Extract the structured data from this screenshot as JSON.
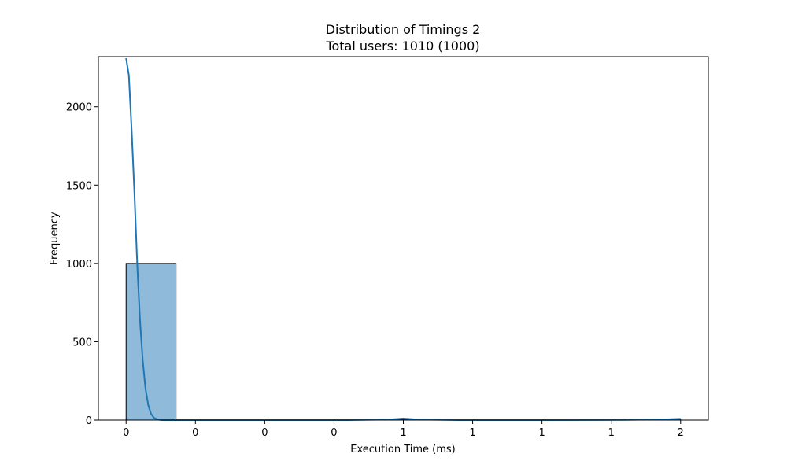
{
  "chart_data": {
    "type": "histogram",
    "title": "Distribution of Timings 2",
    "subtitle": "Total users: 1010 (1000)",
    "xlabel": "Execution Time (ms)",
    "ylabel": "Frequency",
    "xlim": [
      -0.1,
      2.1
    ],
    "ylim": [
      0,
      2320
    ],
    "x_ticks": [
      {
        "value": 0,
        "label": "0"
      },
      {
        "value": 0.25,
        "label": "0"
      },
      {
        "value": 0.5,
        "label": "0"
      },
      {
        "value": 0.75,
        "label": "0"
      },
      {
        "value": 1.0,
        "label": "1"
      },
      {
        "value": 1.25,
        "label": "1"
      },
      {
        "value": 1.5,
        "label": "1"
      },
      {
        "value": 1.75,
        "label": "1"
      },
      {
        "value": 2.0,
        "label": "2"
      }
    ],
    "y_ticks": [
      0,
      500,
      1000,
      1500,
      2000
    ],
    "bins": [
      {
        "x0": 0.0,
        "x1": 0.18,
        "count": 1000
      },
      {
        "x0": 0.18,
        "x1": 0.36,
        "count": 0
      },
      {
        "x0": 0.36,
        "x1": 0.54,
        "count": 0
      },
      {
        "x0": 0.54,
        "x1": 0.72,
        "count": 0
      },
      {
        "x0": 0.72,
        "x1": 0.9,
        "count": 0
      },
      {
        "x0": 0.9,
        "x1": 1.08,
        "count": 5
      },
      {
        "x0": 1.08,
        "x1": 1.26,
        "count": 0
      },
      {
        "x0": 1.26,
        "x1": 1.44,
        "count": 0
      },
      {
        "x0": 1.44,
        "x1": 1.62,
        "count": 0
      },
      {
        "x0": 1.62,
        "x1": 1.8,
        "count": 0
      },
      {
        "x0": 1.8,
        "x1": 2.0,
        "count": 5
      }
    ],
    "kde": {
      "x": [
        0.0,
        0.01,
        0.02,
        0.03,
        0.04,
        0.05,
        0.06,
        0.07,
        0.08,
        0.09,
        0.1,
        0.11,
        0.12,
        0.13,
        0.15,
        0.18,
        0.22,
        0.3,
        0.5,
        0.8,
        0.95,
        1.0,
        1.05,
        1.2,
        1.5,
        1.8,
        1.95,
        2.0
      ],
      "y": [
        2310,
        2200,
        1850,
        1450,
        1000,
        640,
        380,
        200,
        95,
        40,
        15,
        6,
        2,
        0,
        0,
        0,
        0,
        0,
        0,
        0,
        4,
        10,
        4,
        0,
        0,
        1,
        5,
        8
      ]
    },
    "colors": {
      "bar_fill": "#8fbad9",
      "bar_edge": "#000000",
      "kde_line": "#1f77b4"
    },
    "grid": false
  }
}
